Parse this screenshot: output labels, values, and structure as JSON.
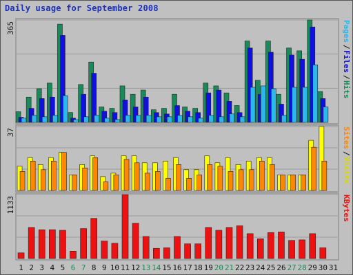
{
  "chart_data": {
    "type": "bar",
    "title": "Daily usage for September 2008",
    "categories": [
      "1",
      "2",
      "3",
      "4",
      "5",
      "6",
      "7",
      "8",
      "9",
      "10",
      "11",
      "12",
      "13",
      "14",
      "15",
      "16",
      "17",
      "18",
      "19",
      "20",
      "21",
      "22",
      "23",
      "24",
      "25",
      "26",
      "27",
      "28",
      "29",
      "30",
      "31"
    ],
    "weekend_days": [
      "6",
      "7",
      "13",
      "14",
      "20",
      "21",
      "27",
      "28"
    ],
    "panels": [
      {
        "name": "top",
        "ymax_label": "365",
        "ymax": 365,
        "series": [
          {
            "name": "Hits",
            "color": "#1b8a5a",
            "values": [
              38,
              90,
              120,
              140,
              350,
              35,
              135,
              215,
              55,
              50,
              130,
              100,
              115,
              45,
              50,
              100,
              55,
              50,
              140,
              130,
              105,
              60,
              290,
              150,
              290,
              100,
              265,
              255,
              365,
              110,
              0
            ]
          },
          {
            "name": "Files",
            "color": "#1010e0",
            "values": [
              18,
              50,
              85,
              90,
              310,
              15,
              100,
              175,
              40,
              35,
              80,
              55,
              90,
              35,
              30,
              60,
              40,
              35,
              105,
              115,
              75,
              35,
              265,
              100,
              250,
              65,
              240,
              225,
              340,
              85,
              0
            ]
          },
          {
            "name": "Pages",
            "color": "#2ab8ee",
            "values": [
              15,
              25,
              20,
              25,
              95,
              10,
              20,
              25,
              15,
              10,
              25,
              25,
              25,
              20,
              20,
              25,
              20,
              15,
              25,
              20,
              30,
              20,
              125,
              130,
              120,
              25,
              125,
              125,
              205,
              55,
              0
            ]
          }
        ],
        "right_labels": [
          {
            "text": "Pages",
            "color": "#2ab8ee"
          },
          {
            "text": "/",
            "color": "#111111"
          },
          {
            "text": "Files",
            "color": "#1010e0"
          },
          {
            "text": "/",
            "color": "#111111"
          },
          {
            "text": "Hits",
            "color": "#1b8a5a"
          }
        ]
      },
      {
        "name": "middle",
        "ymax_label": "37",
        "ymax": 37,
        "series": [
          {
            "name": "Visits",
            "color": "#ffff00",
            "values": [
              14,
              19,
              15,
              19,
              22,
              9,
              15,
              20,
              8,
              10,
              20,
              20,
              16,
              16,
              17,
              19,
              12,
              12,
              20,
              16,
              19,
              15,
              17,
              19,
              19,
              9,
              9,
              9,
              29,
              37,
              0
            ]
          },
          {
            "name": "Sites",
            "color": "#ff8800",
            "values": [
              11,
              17,
              12,
              17,
              22,
              9,
              13,
              19,
              5,
              9,
              18,
              16,
              10,
              11,
              7,
              15,
              7,
              9,
              15,
              14,
              11,
              12,
              12,
              17,
              15,
              9,
              9,
              9,
              25,
              17,
              0
            ]
          }
        ],
        "right_labels": [
          {
            "text": "Sites",
            "color": "#ff8800"
          },
          {
            "text": "/",
            "color": "#111111"
          },
          {
            "text": "Visits",
            "color": "#d8d800"
          }
        ]
      },
      {
        "name": "bottom",
        "ymax_label": "1133",
        "ymax": 1133,
        "series": [
          {
            "name": "KBytes",
            "color": "#ee1111",
            "values": [
              100,
              550,
              510,
              510,
              500,
              130,
              530,
              710,
              310,
              270,
              1133,
              625,
              390,
              180,
              190,
              390,
              260,
              260,
              550,
              500,
              550,
              580,
              440,
              350,
              460,
              470,
              320,
              330,
              440,
              190,
              0
            ]
          }
        ],
        "right_labels": [
          {
            "text": "KBytes",
            "color": "#ee1111"
          }
        ]
      }
    ]
  }
}
